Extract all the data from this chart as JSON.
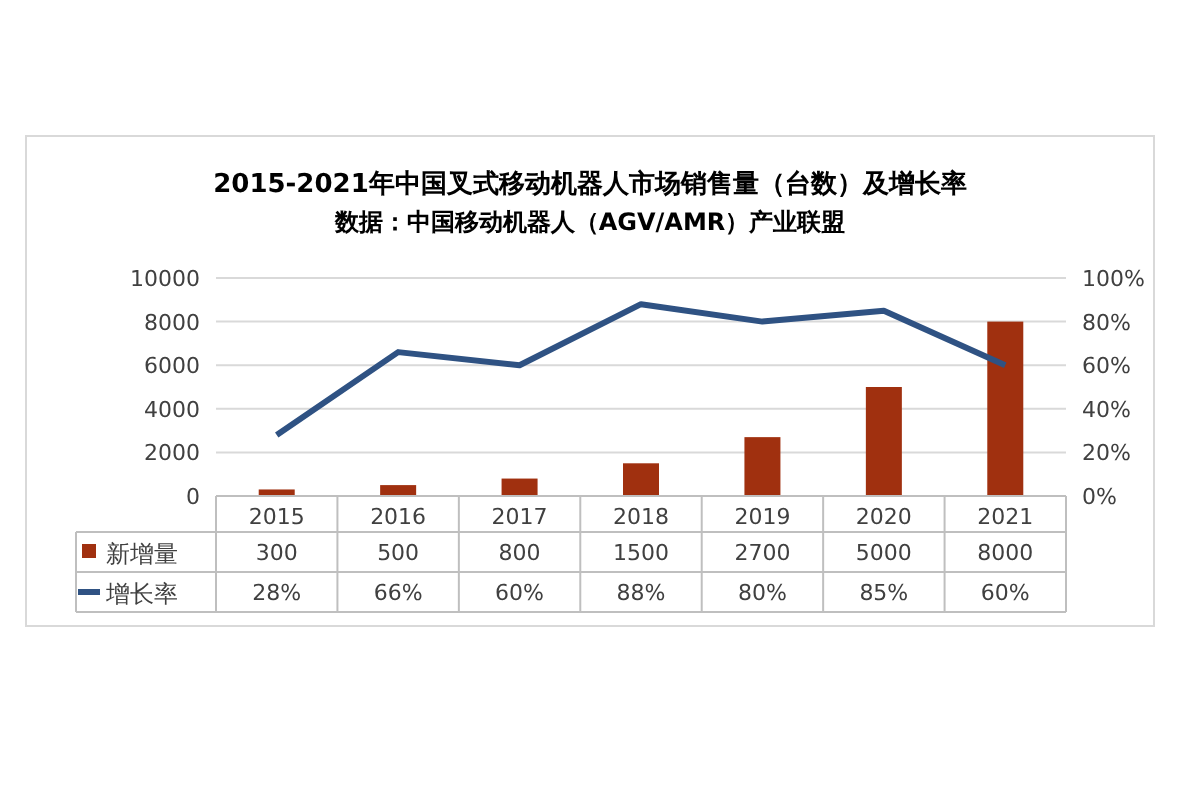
{
  "chart_data": {
    "type": "bar",
    "title": "2015-2021年中国叉式移动机器人市场销售量（台数）及增长率",
    "subtitle": "数据：中国移动机器人（AGV/AMR）产业联盟",
    "categories": [
      "2015",
      "2016",
      "2017",
      "2018",
      "2019",
      "2020",
      "2021"
    ],
    "series": [
      {
        "name": "新增量",
        "color": "#a0300f",
        "values": [
          300,
          500,
          800,
          1500,
          2700,
          5000,
          8000
        ],
        "value_labels": [
          "300",
          "500",
          "800",
          "1500",
          "2700",
          "5000",
          "8000"
        ]
      },
      {
        "name": "增长率",
        "type": "line",
        "axis": "y2",
        "color": "#2f5283",
        "values": [
          28,
          66,
          60,
          88,
          80,
          85,
          60
        ],
        "value_labels": [
          "28%",
          "66%",
          "60%",
          "88%",
          "80%",
          "85%",
          "60%"
        ]
      }
    ],
    "ylim": [
      0,
      10000
    ],
    "yticks": [
      0,
      2000,
      4000,
      6000,
      8000,
      10000
    ],
    "y2lim": [
      0,
      100
    ],
    "y2ticks": [
      {
        "value": 0,
        "label": "0%"
      },
      {
        "value": 20,
        "label": "20%"
      },
      {
        "value": 40,
        "label": "40%"
      },
      {
        "value": 60,
        "label": "60%"
      },
      {
        "value": 80,
        "label": "80%"
      },
      {
        "value": 100,
        "label": "100%"
      }
    ],
    "grid": "y",
    "legend": "bottom"
  }
}
